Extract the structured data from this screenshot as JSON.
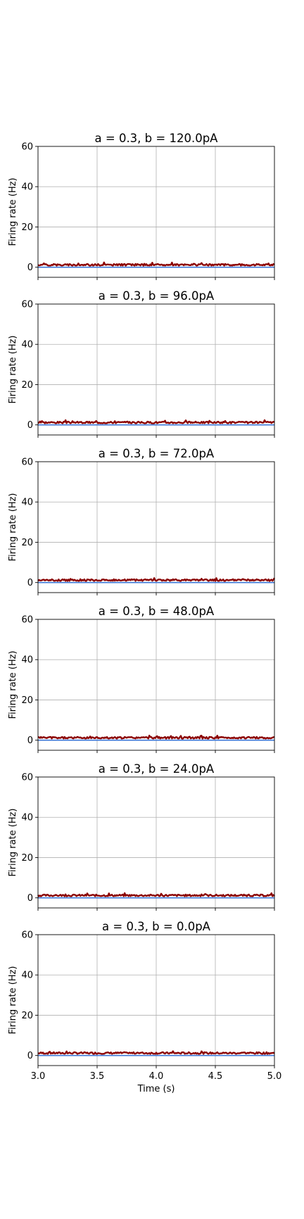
{
  "chart_data": [
    {
      "type": "line",
      "title": "a = 0.3, b = 120.0pA",
      "ylabel": "Firing rate (Hz)",
      "xlabel": "",
      "xlim": [
        3.0,
        5.0
      ],
      "ylim": [
        -5,
        60
      ],
      "yticks": [
        0,
        20,
        40,
        60
      ],
      "xticks": [
        3.0,
        3.5,
        4.0,
        4.5,
        5.0
      ],
      "show_xtick_labels": false,
      "grid": true,
      "series": [
        {
          "color": "#8b0000",
          "baseline": 1.2,
          "noise": 0.45,
          "seed": 1
        },
        {
          "color": "#3c78d8",
          "baseline": 0.0,
          "noise": 0.0,
          "seed": 0
        }
      ]
    },
    {
      "type": "line",
      "title": "a = 0.3, b = 96.0pA",
      "ylabel": "Firing rate (Hz)",
      "xlabel": "",
      "xlim": [
        3.0,
        5.0
      ],
      "ylim": [
        -5,
        60
      ],
      "yticks": [
        0,
        20,
        40,
        60
      ],
      "xticks": [
        3.0,
        3.5,
        4.0,
        4.5,
        5.0
      ],
      "show_xtick_labels": false,
      "grid": true,
      "series": [
        {
          "color": "#8b0000",
          "baseline": 1.2,
          "noise": 0.45,
          "seed": 2
        },
        {
          "color": "#3c78d8",
          "baseline": 0.0,
          "noise": 0.0,
          "seed": 0
        }
      ]
    },
    {
      "type": "line",
      "title": "a = 0.3, b = 72.0pA",
      "ylabel": "Firing rate (Hz)",
      "xlabel": "",
      "xlim": [
        3.0,
        5.0
      ],
      "ylim": [
        -5,
        60
      ],
      "yticks": [
        0,
        20,
        40,
        60
      ],
      "xticks": [
        3.0,
        3.5,
        4.0,
        4.5,
        5.0
      ],
      "show_xtick_labels": false,
      "grid": true,
      "series": [
        {
          "color": "#8b0000",
          "baseline": 1.2,
          "noise": 0.45,
          "seed": 3
        },
        {
          "color": "#3c78d8",
          "baseline": 0.0,
          "noise": 0.0,
          "seed": 0
        }
      ]
    },
    {
      "type": "line",
      "title": "a = 0.3, b = 48.0pA",
      "ylabel": "Firing rate (Hz)",
      "xlabel": "",
      "xlim": [
        3.0,
        5.0
      ],
      "ylim": [
        -5,
        60
      ],
      "yticks": [
        0,
        20,
        40,
        60
      ],
      "xticks": [
        3.0,
        3.5,
        4.0,
        4.5,
        5.0
      ],
      "show_xtick_labels": false,
      "grid": true,
      "series": [
        {
          "color": "#8b0000",
          "baseline": 1.2,
          "noise": 0.45,
          "seed": 4
        },
        {
          "color": "#3c78d8",
          "baseline": 0.0,
          "noise": 0.0,
          "seed": 0
        }
      ]
    },
    {
      "type": "line",
      "title": "a = 0.3, b = 24.0pA",
      "ylabel": "Firing rate (Hz)",
      "xlabel": "",
      "xlim": [
        3.0,
        5.0
      ],
      "ylim": [
        -5,
        60
      ],
      "yticks": [
        0,
        20,
        40,
        60
      ],
      "xticks": [
        3.0,
        3.5,
        4.0,
        4.5,
        5.0
      ],
      "show_xtick_labels": false,
      "grid": true,
      "series": [
        {
          "color": "#8b0000",
          "baseline": 1.2,
          "noise": 0.45,
          "seed": 5
        },
        {
          "color": "#3c78d8",
          "baseline": 0.0,
          "noise": 0.0,
          "seed": 0
        }
      ]
    },
    {
      "type": "line",
      "title": "a = 0.3, b = 0.0pA",
      "ylabel": "Firing rate (Hz)",
      "xlabel": "Time (s)",
      "xlim": [
        3.0,
        5.0
      ],
      "ylim": [
        -5,
        60
      ],
      "yticks": [
        0,
        20,
        40,
        60
      ],
      "xticks": [
        3.0,
        3.5,
        4.0,
        4.5,
        5.0
      ],
      "xtick_labels": [
        "3.0",
        "3.5",
        "4.0",
        "4.5",
        "5.0"
      ],
      "show_xtick_labels": true,
      "grid": true,
      "series": [
        {
          "color": "#8b0000",
          "baseline": 1.2,
          "noise": 0.45,
          "seed": 6
        },
        {
          "color": "#3c78d8",
          "baseline": 0.0,
          "noise": 0.0,
          "seed": 0
        }
      ]
    }
  ]
}
